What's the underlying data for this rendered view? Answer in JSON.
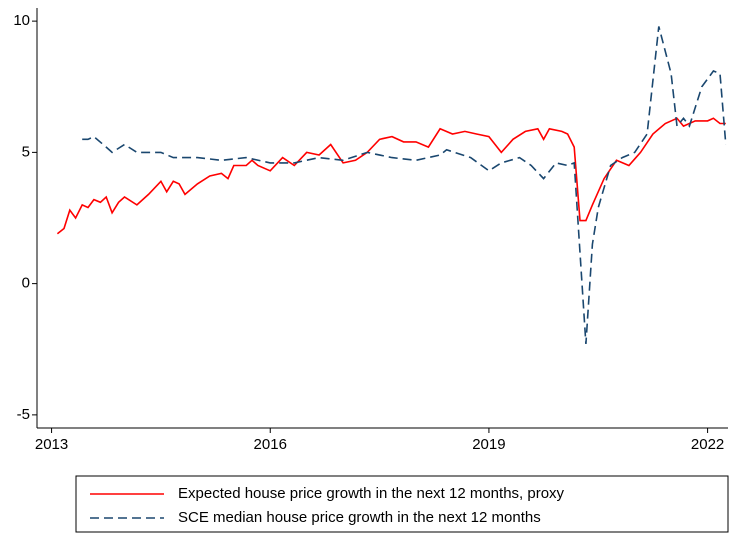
{
  "chart_data": {
    "type": "line",
    "series": [
      {
        "name": "Expected house price growth in the next 12 months, proxy",
        "color": "#ff0000",
        "dash": "solid",
        "x": [
          2013.08,
          2013.17,
          2013.25,
          2013.33,
          2013.42,
          2013.5,
          2013.58,
          2013.67,
          2013.75,
          2013.83,
          2013.92,
          2014.0,
          2014.17,
          2014.33,
          2014.5,
          2014.58,
          2014.67,
          2014.75,
          2014.83,
          2015.0,
          2015.17,
          2015.33,
          2015.42,
          2015.5,
          2015.67,
          2015.75,
          2015.83,
          2016.0,
          2016.17,
          2016.33,
          2016.5,
          2016.67,
          2016.83,
          2017.0,
          2017.17,
          2017.33,
          2017.5,
          2017.67,
          2017.83,
          2018.0,
          2018.17,
          2018.33,
          2018.5,
          2018.67,
          2018.83,
          2019.0,
          2019.17,
          2019.33,
          2019.5,
          2019.67,
          2019.75,
          2019.83,
          2020.0,
          2020.08,
          2020.17,
          2020.25,
          2020.33,
          2020.42,
          2020.58,
          2020.75,
          2020.92,
          2021.08,
          2021.25,
          2021.42,
          2021.58,
          2021.67,
          2021.83,
          2022.0,
          2022.08,
          2022.17,
          2022.25
        ],
        "values": [
          1.9,
          2.1,
          2.8,
          2.5,
          3.0,
          2.9,
          3.2,
          3.1,
          3.3,
          2.7,
          3.1,
          3.3,
          3.0,
          3.4,
          3.9,
          3.5,
          3.9,
          3.8,
          3.4,
          3.8,
          4.1,
          4.2,
          4.0,
          4.5,
          4.5,
          4.7,
          4.5,
          4.3,
          4.8,
          4.5,
          5.0,
          4.9,
          5.3,
          4.6,
          4.7,
          5.0,
          5.5,
          5.6,
          5.4,
          5.4,
          5.2,
          5.9,
          5.7,
          5.8,
          5.7,
          5.6,
          5.0,
          5.5,
          5.8,
          5.9,
          5.5,
          5.9,
          5.8,
          5.7,
          5.2,
          2.4,
          2.4,
          3.0,
          4.0,
          4.7,
          4.5,
          5.0,
          5.7,
          6.1,
          6.3,
          6.0,
          6.2,
          6.2,
          6.3,
          6.1,
          6.1
        ]
      },
      {
        "name": "SCE median house price growth in the next 12 months",
        "color": "#1a476f",
        "dash": "dashed",
        "x": [
          2013.42,
          2013.5,
          2013.58,
          2013.75,
          2013.83,
          2014.0,
          2014.17,
          2014.5,
          2014.67,
          2015.0,
          2015.33,
          2015.67,
          2016.0,
          2016.33,
          2016.67,
          2017.0,
          2017.33,
          2017.67,
          2018.0,
          2018.33,
          2018.42,
          2018.75,
          2019.0,
          2019.17,
          2019.42,
          2019.58,
          2019.75,
          2019.92,
          2020.08,
          2020.17,
          2020.33,
          2020.42,
          2020.5,
          2020.67,
          2020.83,
          2021.0,
          2021.17,
          2021.33,
          2021.5,
          2021.58,
          2021.67,
          2021.75,
          2021.92,
          2022.08,
          2022.17,
          2022.25
        ],
        "values": [
          5.5,
          5.5,
          5.6,
          5.2,
          5.0,
          5.3,
          5.0,
          5.0,
          4.8,
          4.8,
          4.7,
          4.8,
          4.6,
          4.6,
          4.8,
          4.7,
          5.0,
          4.8,
          4.7,
          4.9,
          5.1,
          4.8,
          4.3,
          4.6,
          4.8,
          4.5,
          4.0,
          4.6,
          4.5,
          4.6,
          -2.3,
          1.5,
          2.9,
          4.5,
          4.8,
          5.0,
          5.7,
          9.8,
          8.0,
          6.0,
          6.3,
          6.0,
          7.5,
          8.1,
          8.0,
          5.3
        ]
      }
    ],
    "xlim": [
      2012.8,
      2022.28
    ],
    "xticks": [
      2013,
      2016,
      2019,
      2022
    ],
    "ylim": [
      -5.5,
      10.5
    ],
    "yticks": [
      -5,
      0,
      5,
      10
    ]
  }
}
